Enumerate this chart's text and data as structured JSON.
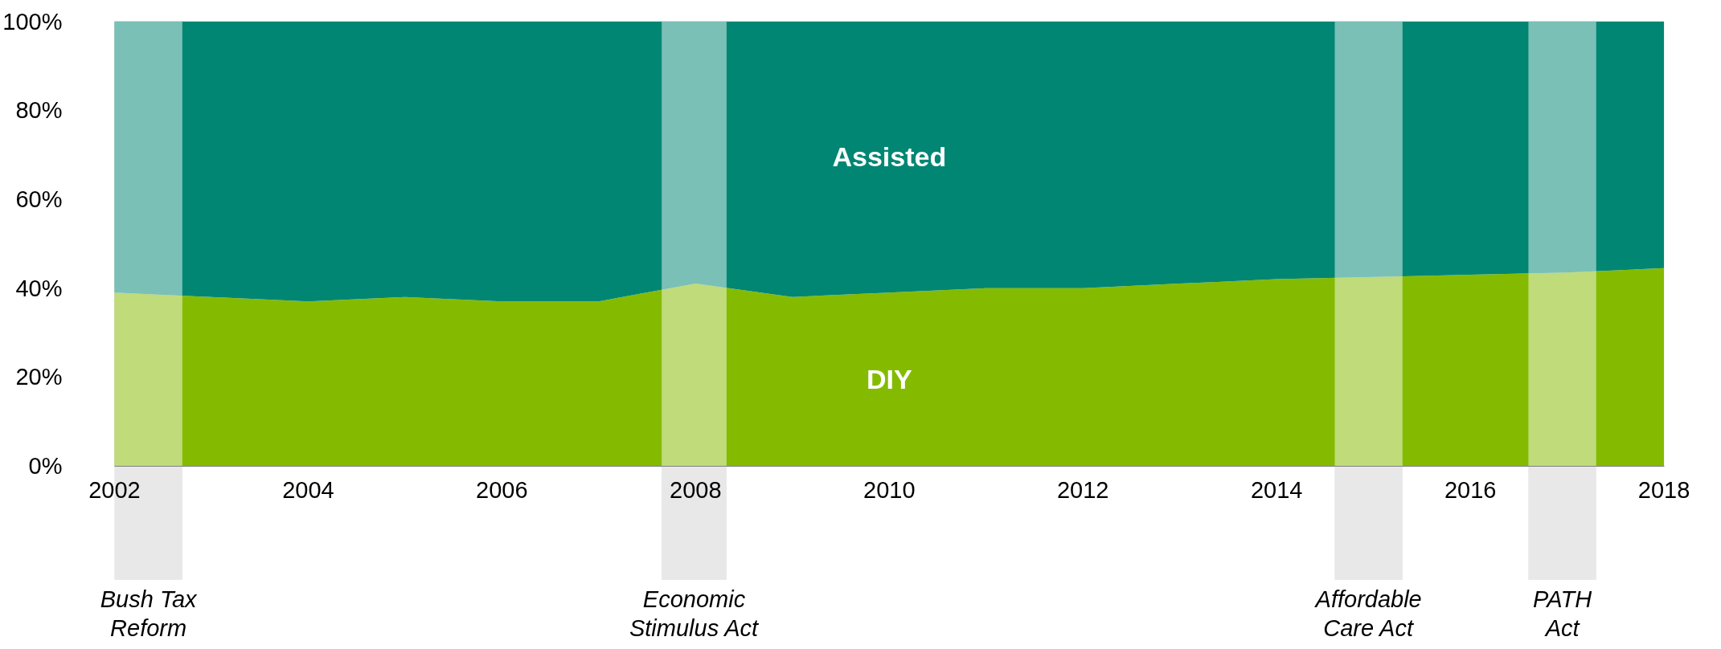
{
  "chart_data": {
    "type": "area",
    "stacked": true,
    "x": [
      2002,
      2003,
      2004,
      2005,
      2006,
      2007,
      2008,
      2009,
      2010,
      2011,
      2012,
      2013,
      2014,
      2015,
      2016,
      2017,
      2018
    ],
    "series": [
      {
        "name": "DIY",
        "color": "#84bb00",
        "values": [
          39,
          38,
          37,
          38,
          37,
          37,
          41,
          38,
          39,
          40,
          40,
          41,
          42,
          42.5,
          43,
          43.5,
          44.5
        ]
      },
      {
        "name": "Assisted",
        "color": "#008673",
        "values": [
          61,
          62,
          63,
          62,
          63,
          63,
          59,
          62,
          61,
          60,
          60,
          59,
          58,
          57.5,
          57,
          56.5,
          55.5
        ]
      }
    ],
    "xlim": [
      2002,
      2018
    ],
    "xticks": [
      2002,
      2004,
      2006,
      2008,
      2010,
      2012,
      2014,
      2016,
      2018
    ],
    "ylim": [
      0,
      100
    ],
    "yticks": [
      {
        "value": 0,
        "label": "0%"
      },
      {
        "value": 20,
        "label": "20%"
      },
      {
        "value": 40,
        "label": "40%"
      },
      {
        "value": 60,
        "label": "60%"
      },
      {
        "value": 80,
        "label": "80%"
      },
      {
        "value": 100,
        "label": "100%"
      }
    ],
    "bands": [
      {
        "axis": "x",
        "from": 2002,
        "to": 2002.7,
        "label": "Bush Tax Reform",
        "color": "#ffffff"
      },
      {
        "axis": "x",
        "from": 2007.65,
        "to": 2008.32,
        "label": "Economic Stimulus Act",
        "color": "#ffffff"
      },
      {
        "axis": "x",
        "from": 2014.6,
        "to": 2015.3,
        "label": "Affordable Care Act",
        "color": "#ffffff"
      },
      {
        "axis": "x",
        "from": 2016.6,
        "to": 2017.3,
        "label": "PATH Act",
        "color": "#ffffff"
      }
    ],
    "grid": false
  }
}
